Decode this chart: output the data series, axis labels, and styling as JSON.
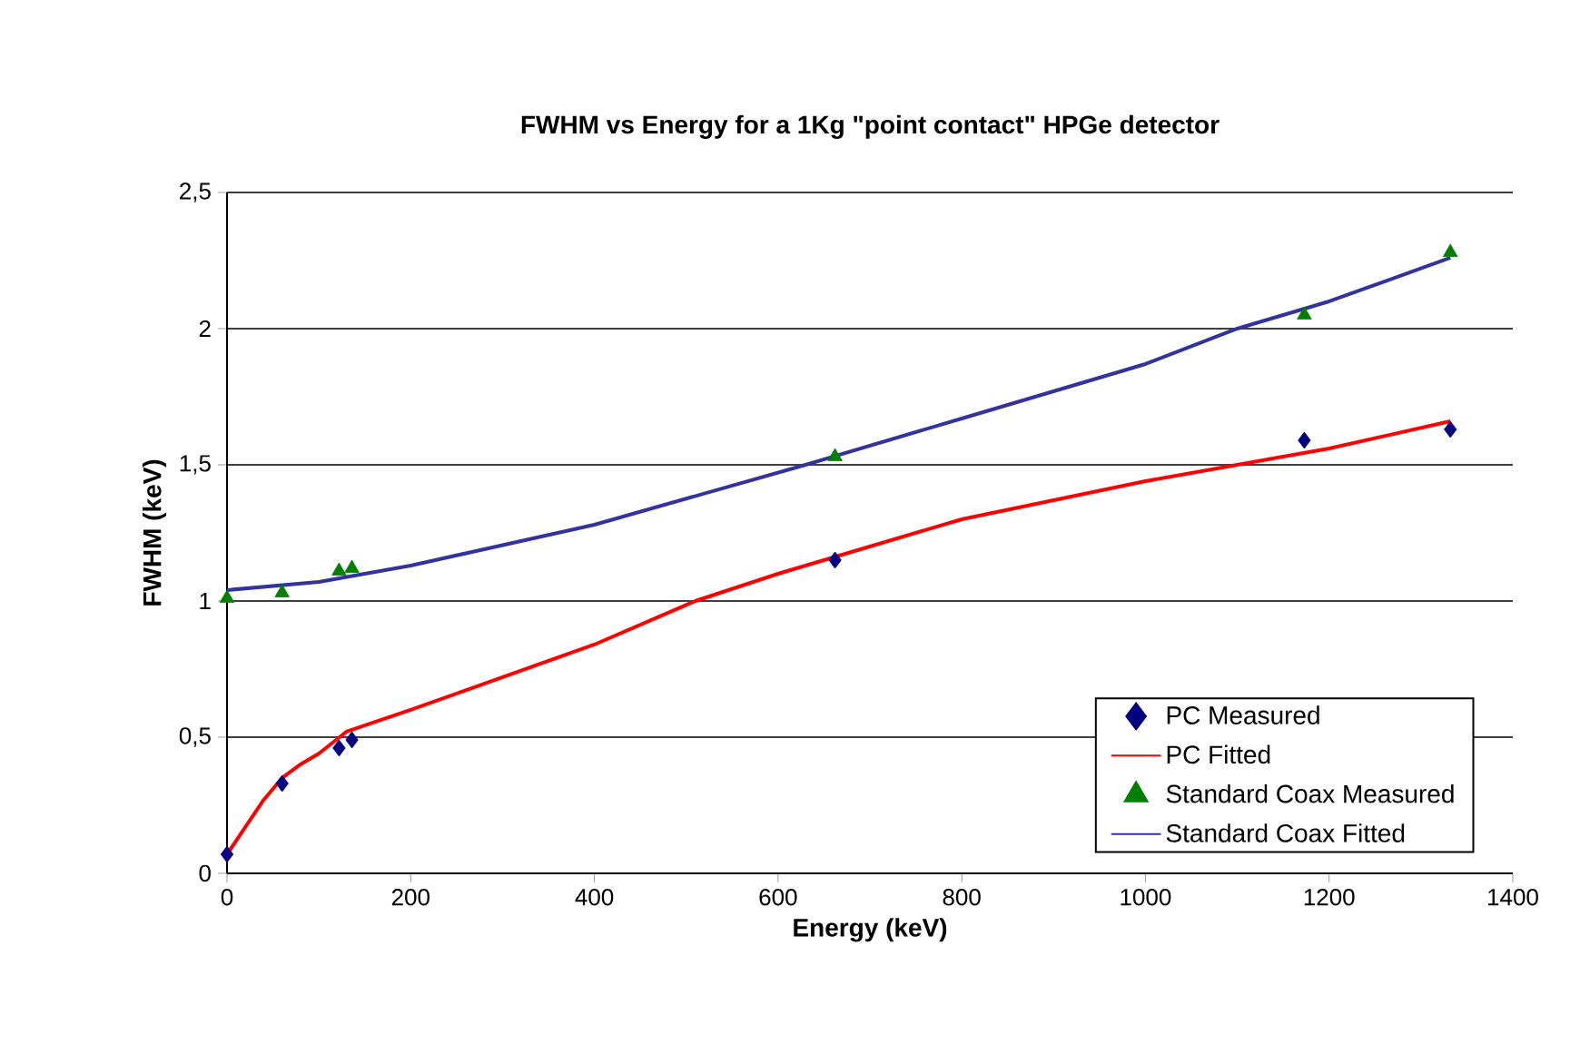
{
  "chart_data": {
    "type": "line",
    "title": "FWHM vs Energy for a 1Kg \"point contact\" HPGe detector",
    "xlabel": "Energy (keV)",
    "ylabel": "FWHM (keV)",
    "xlim": [
      0,
      1400
    ],
    "ylim": [
      0,
      2.5
    ],
    "xticks": [
      0,
      200,
      400,
      600,
      800,
      1000,
      1200,
      1400
    ],
    "yticks": [
      0,
      {
        "value": 0.5,
        "label": "0,5"
      },
      1,
      {
        "value": 1.5,
        "label": "1,5"
      },
      2,
      {
        "value": 2.5,
        "label": "2,5"
      }
    ],
    "grid": "y",
    "legend": "bottom right",
    "series": [
      {
        "name": "PC Measured",
        "type": "scatter",
        "marker": "diamond",
        "color": "#000080",
        "x": [
          0,
          60,
          122,
          136,
          662,
          1173,
          1332
        ],
        "values": [
          0.07,
          0.33,
          0.46,
          0.49,
          1.15,
          1.59,
          1.63
        ]
      },
      {
        "name": "PC Fitted",
        "color": "#ff0000",
        "x": [
          0,
          20,
          40,
          60,
          80,
          100,
          130,
          200,
          400,
          510,
          600,
          800,
          1000,
          1100,
          1200,
          1332
        ],
        "values": [
          0.07,
          0.17,
          0.27,
          0.35,
          0.4,
          0.44,
          0.52,
          0.6,
          0.84,
          1.0,
          1.1,
          1.3,
          1.44,
          1.5,
          1.56,
          1.66
        ]
      },
      {
        "name": "Standard Coax Measured",
        "type": "scatter",
        "marker": "triangle",
        "color": "#008000",
        "x": [
          0,
          60,
          122,
          136,
          662,
          1173,
          1332
        ],
        "values": [
          1.01,
          1.03,
          1.11,
          1.12,
          1.53,
          2.05,
          2.28
        ]
      },
      {
        "name": "Standard Coax Fitted",
        "color": "#3333a0",
        "x": [
          0,
          100,
          200,
          400,
          630,
          800,
          1000,
          1100,
          1200,
          1332
        ],
        "values": [
          1.04,
          1.07,
          1.13,
          1.28,
          1.5,
          1.67,
          1.87,
          2.0,
          2.1,
          2.26
        ]
      }
    ]
  }
}
